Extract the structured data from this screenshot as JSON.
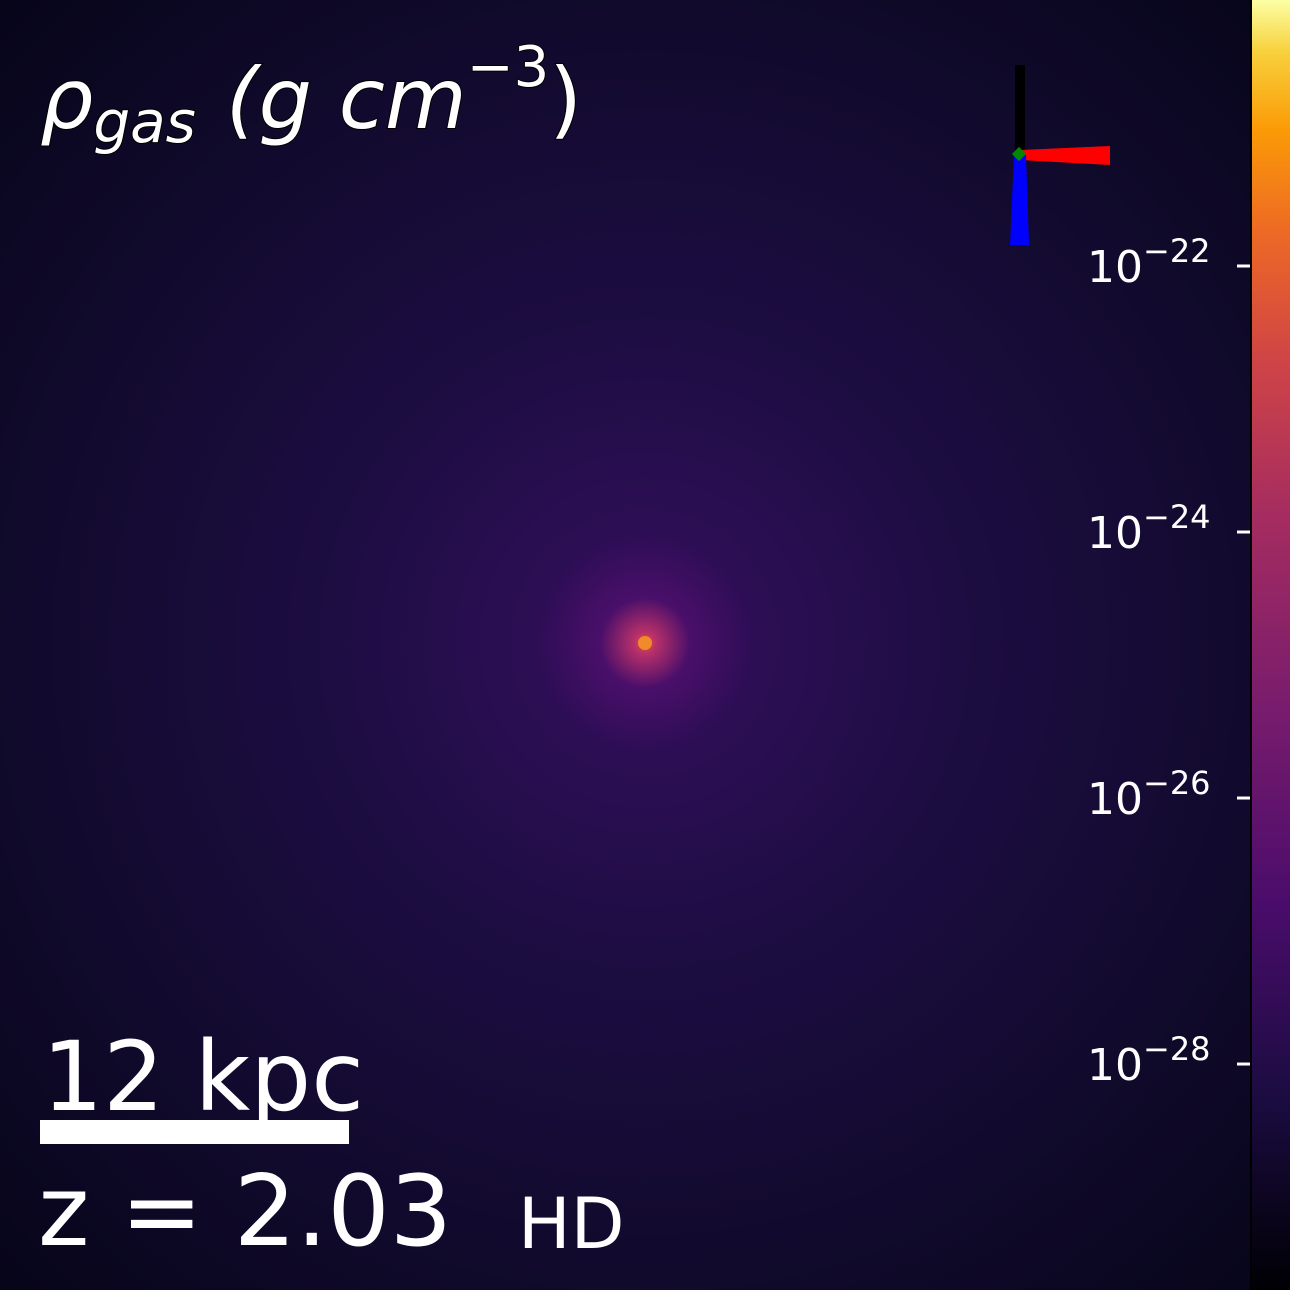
{
  "title": {
    "symbol": "ρ",
    "subscript": "gas",
    "unit": "(g cm",
    "unit_exponent": "−3",
    "close": ")"
  },
  "colorbar": {
    "scale": "log",
    "lim": [
      2e-30,
      1e-20
    ],
    "colormap": "inferno",
    "ticks": [
      {
        "value": 1e-22,
        "label": "10−22"
      },
      {
        "value": 1e-24,
        "label": "10−24"
      },
      {
        "value": 1e-26,
        "label": "10−26"
      },
      {
        "value": 1e-28,
        "label": "10−28"
      }
    ]
  },
  "scale_bar": {
    "label": "12 kpc"
  },
  "redshift": "z = 2.03",
  "tag": "HD"
}
